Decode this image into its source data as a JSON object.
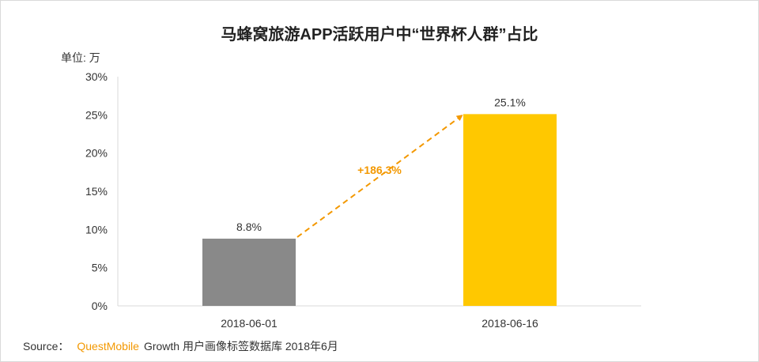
{
  "chart_data": {
    "type": "bar",
    "title": "马蜂窝旅游APP活跃用户中“世界杯人群”占比",
    "unit_label": "单位: 万",
    "categories": [
      "2018-06-01",
      "2018-06-16"
    ],
    "values": [
      8.8,
      25.1
    ],
    "value_labels": [
      "8.8%",
      "25.1%"
    ],
    "bar_colors": [
      "#898989",
      "#ffc800"
    ],
    "yticks": [
      0,
      5,
      10,
      15,
      20,
      25,
      30
    ],
    "ytick_labels": [
      "0%",
      "5%",
      "10%",
      "15%",
      "20%",
      "25%",
      "30%"
    ],
    "ylim": [
      0,
      30
    ],
    "grid": false,
    "annotation": {
      "text": "+186.3%",
      "color": "#f39800"
    }
  },
  "source": {
    "prefix": "Source：",
    "brand": "QuestMobile",
    "rest": "Growth 用户画像标签数据库 2018年6月"
  }
}
